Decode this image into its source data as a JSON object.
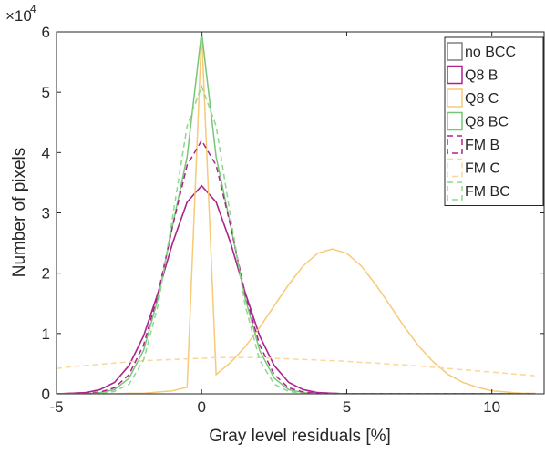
{
  "chart_data": {
    "type": "line",
    "xlabel": "Gray level residuals [%]",
    "ylabel": "Number of pixels",
    "y_exponent_base": "×10",
    "y_exponent": "4",
    "x": [
      -5,
      -4.5,
      -4,
      -3.5,
      -3,
      -2.5,
      -2,
      -1.5,
      -1,
      -0.5,
      0,
      0.5,
      1,
      1.5,
      2,
      2.5,
      3,
      3.5,
      4,
      4.5,
      5,
      5.5,
      6,
      6.5,
      7,
      7.5,
      8,
      8.5,
      9,
      9.5,
      10,
      10.5,
      11,
      11.5
    ],
    "series": [
      {
        "name": "no BCC",
        "color": "#808080",
        "linestyle": "solid",
        "values": [
          0,
          0.01,
          0.02,
          0.07,
          0.19,
          0.47,
          0.96,
          1.68,
          2.5,
          3.18,
          3.45,
          3.18,
          2.5,
          1.68,
          0.96,
          0.47,
          0.19,
          0.07,
          0.02,
          0.01,
          0,
          0,
          0,
          0,
          0,
          0,
          0,
          0,
          0,
          0,
          0,
          0,
          0,
          0
        ]
      },
      {
        "name": "Q8 B",
        "color": "#b0238e",
        "linestyle": "solid",
        "values": [
          0,
          0.01,
          0.02,
          0.07,
          0.19,
          0.47,
          0.96,
          1.68,
          2.5,
          3.18,
          3.45,
          3.18,
          2.5,
          1.68,
          0.96,
          0.47,
          0.19,
          0.07,
          0.02,
          0.01,
          0,
          0,
          0,
          0,
          0,
          0,
          0,
          0,
          0,
          0,
          0,
          0,
          0,
          0
        ]
      },
      {
        "name": "Q8 C",
        "color": "#f7c978",
        "linestyle": "solid",
        "values": [
          0,
          0,
          0,
          0,
          0,
          0.01,
          0.01,
          0.03,
          0.05,
          0.11,
          6,
          0.32,
          0.52,
          0.78,
          1.1,
          1.46,
          1.81,
          2.12,
          2.33,
          2.4,
          2.33,
          2.12,
          1.81,
          1.46,
          1.1,
          0.78,
          0.52,
          0.32,
          0.19,
          0.11,
          0.05,
          0.03,
          0.01,
          0.01
        ]
      },
      {
        "name": "Q8 BC",
        "color": "#77c677",
        "linestyle": "solid",
        "values": [
          0,
          0,
          0,
          0.02,
          0.07,
          0.26,
          0.72,
          1.59,
          2.79,
          3.93,
          6,
          3.93,
          2.79,
          1.59,
          0.72,
          0.26,
          0.07,
          0.02,
          0,
          0,
          0,
          0,
          0,
          0,
          0,
          0,
          0,
          0,
          0,
          0,
          0,
          0,
          0,
          0
        ]
      },
      {
        "name": "FM B",
        "color": "#b0238e",
        "linestyle": "dashed",
        "values": [
          0,
          0,
          0.01,
          0.03,
          0.1,
          0.32,
          0.81,
          1.66,
          2.78,
          3.79,
          4.2,
          3.79,
          2.78,
          1.66,
          0.81,
          0.32,
          0.1,
          0.03,
          0.01,
          0,
          0,
          0,
          0,
          0,
          0,
          0,
          0,
          0,
          0,
          0,
          0,
          0,
          0,
          0
        ]
      },
      {
        "name": "FM C",
        "color": "#fad79a",
        "linestyle": "dashed",
        "values": [
          0.42,
          0.45,
          0.47,
          0.49,
          0.51,
          0.53,
          0.55,
          0.56,
          0.57,
          0.58,
          0.59,
          0.6,
          0.6,
          0.6,
          0.6,
          0.59,
          0.58,
          0.57,
          0.56,
          0.55,
          0.54,
          0.52,
          0.51,
          0.49,
          0.48,
          0.46,
          0.44,
          0.42,
          0.4,
          0.38,
          0.36,
          0.34,
          0.32,
          0.3
        ]
      },
      {
        "name": "FM BC",
        "color": "#8fd68f",
        "linestyle": "dashed",
        "values": [
          0,
          0,
          0,
          0.01,
          0.04,
          0.16,
          0.56,
          1.47,
          2.93,
          4.44,
          5.1,
          4.44,
          2.93,
          1.47,
          0.56,
          0.16,
          0.04,
          0.01,
          0,
          0,
          0,
          0,
          0,
          0,
          0,
          0,
          0,
          0,
          0,
          0,
          0,
          0,
          0,
          0
        ]
      }
    ],
    "xlim": [
      -5,
      11.8
    ],
    "xticks": [
      -5,
      0,
      5,
      10
    ],
    "ylim": [
      0,
      6
    ],
    "yticks": [
      0,
      1,
      2,
      3,
      4,
      5,
      6
    ],
    "grid": false,
    "legend": "northeast"
  }
}
